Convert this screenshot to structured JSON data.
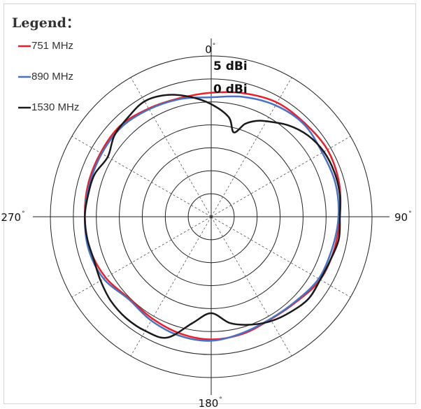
{
  "chart_data": {
    "type": "polar-line",
    "legend_title": "Legend：",
    "legend_placement": "top-left",
    "angle_labels": [
      {
        "angle": 0,
        "text": "0"
      },
      {
        "angle": 90,
        "text": "90"
      },
      {
        "angle": 180,
        "text": "180"
      },
      {
        "angle": 270,
        "text": "270"
      }
    ],
    "degree_symbol": "°",
    "radial_labels": [
      "5 dBi",
      "0 dBi"
    ],
    "radial_label_values": [
      5,
      0
    ],
    "rings": [
      -25,
      -20,
      -15,
      -10,
      -5,
      0,
      5
    ],
    "r_range": [
      -30,
      5
    ],
    "grid": true,
    "spoke_step_deg": 30,
    "series": [
      {
        "name": "751 MHz",
        "color": "#e8202a",
        "angles": [
          0,
          15,
          30,
          45,
          60,
          75,
          90,
          105,
          120,
          135,
          150,
          165,
          180,
          195,
          210,
          225,
          240,
          255,
          270,
          285,
          300,
          315,
          330,
          345
        ],
        "values": [
          -3.0,
          -2.2,
          -1.3,
          -1.2,
          -0.8,
          -1.2,
          -2.0,
          -2.3,
          -2.6,
          -3.8,
          -4.2,
          -3.6,
          -3.3,
          -3.7,
          -4.4,
          -4.8,
          -3.5,
          -2.7,
          -2.5,
          -2.3,
          -2.2,
          -2.0,
          -2.8,
          -3.3
        ]
      },
      {
        "name": "890 MHz",
        "color": "#4a72c4",
        "angles": [
          0,
          15,
          30,
          45,
          60,
          75,
          90,
          105,
          120,
          135,
          150,
          165,
          180,
          195,
          210,
          225,
          240,
          255,
          270,
          285,
          300,
          315,
          330,
          345
        ],
        "values": [
          -4.0,
          -3.0,
          -2.0,
          -1.5,
          -2.1,
          -2.0,
          -2.3,
          -2.8,
          -3.0,
          -4.0,
          -4.3,
          -3.8,
          -3.0,
          -3.2,
          -3.9,
          -4.6,
          -3.0,
          -2.4,
          -2.5,
          -2.6,
          -2.5,
          -2.4,
          -3.0,
          -3.5
        ]
      },
      {
        "name": "1530 MHz",
        "color": "#1a1a1a",
        "angles": [
          0,
          10,
          15,
          20,
          25,
          30,
          40,
          50,
          60,
          70,
          80,
          90,
          100,
          110,
          120,
          130,
          140,
          150,
          160,
          170,
          180,
          190,
          200,
          210,
          220,
          230,
          240,
          250,
          260,
          270,
          280,
          290,
          300,
          310,
          320,
          330,
          340,
          350
        ],
        "values": [
          -5.5,
          -8.0,
          -11.0,
          -8.5,
          -7.0,
          -6.0,
          -4.0,
          -2.5,
          -1.7,
          -1.5,
          -1.6,
          -2.0,
          -1.8,
          -2.4,
          -2.6,
          -2.3,
          -3.0,
          -3.8,
          -5.0,
          -6.5,
          -9.0,
          -6.5,
          -2.0,
          -1.3,
          -1.2,
          -1.5,
          -2.2,
          -2.8,
          -2.6,
          -2.5,
          -2.8,
          -3.0,
          -4.0,
          -2.5,
          -1.8,
          -1.0,
          -1.8,
          -3.5
        ]
      }
    ]
  }
}
